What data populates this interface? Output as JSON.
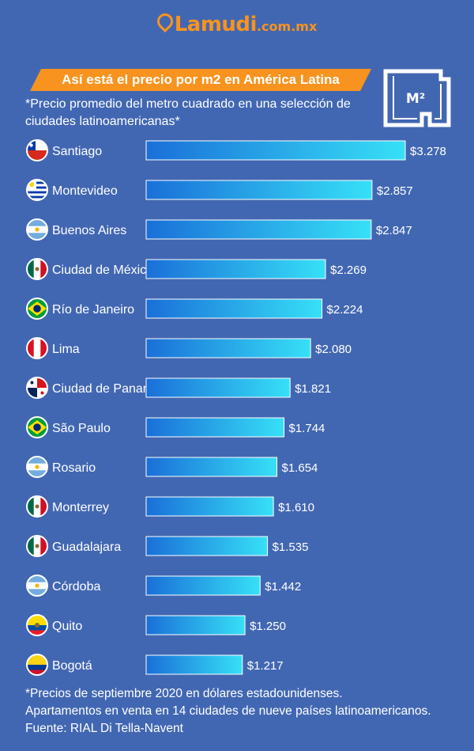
{
  "brand": {
    "name": "Lamudi",
    "domain": ".com.mx"
  },
  "header": {
    "title": "Así está el precio por m2 en América Latina",
    "subtitle": "*Precio promedio del metro cuadrado en una selección de ciudades latinoamericanas*",
    "badge": "M²"
  },
  "colors": {
    "background": "#4267b2",
    "accent": "#f7931e",
    "bar_start": "#1a6fd8",
    "bar_end": "#37e0f7"
  },
  "chart_data": {
    "type": "bar",
    "orientation": "horizontal",
    "categories": [
      "Santiago",
      "Montevideo",
      "Buenos Aires",
      "Ciudad de México",
      "Río de Janeiro",
      "Lima",
      "Ciudad de Panamá",
      "São Paulo",
      "Rosario",
      "Monterrey",
      "Guadalajara",
      "Córdoba",
      "Quito",
      "Bogotá"
    ],
    "values": [
      3278,
      2857,
      2847,
      2269,
      2224,
      2080,
      1821,
      1744,
      1654,
      1610,
      1535,
      1442,
      1250,
      1217
    ],
    "value_labels": [
      "$3.278",
      "$2.857",
      "$2.847",
      "$2.269",
      "$2.224",
      "$2.080",
      "$1.821",
      "$1.744",
      "$1.654",
      "$1.610",
      "$1.535",
      "$1.442",
      "$1.250",
      "$1.217"
    ],
    "flags": [
      "chile-flag-icon",
      "uruguay-flag-icon",
      "argentina-flag-icon",
      "mexico-flag-icon",
      "brazil-flag-icon",
      "peru-flag-icon",
      "panama-flag-icon",
      "brazil-flag-icon",
      "argentina-flag-icon",
      "mexico-flag-icon",
      "mexico-flag-icon",
      "argentina-flag-icon",
      "ecuador-flag-icon",
      "colombia-flag-icon"
    ],
    "xlim": [
      0,
      3278
    ],
    "grid": false,
    "legend": "none"
  },
  "footnotes": [
    "*Precios de septiembre 2020 en dólares estadounidenses.",
    "Apartamentos en venta en 14 ciudades de nueve países latinoamericanos.",
    "Fuente: RIAL Di Tella-Navent"
  ]
}
